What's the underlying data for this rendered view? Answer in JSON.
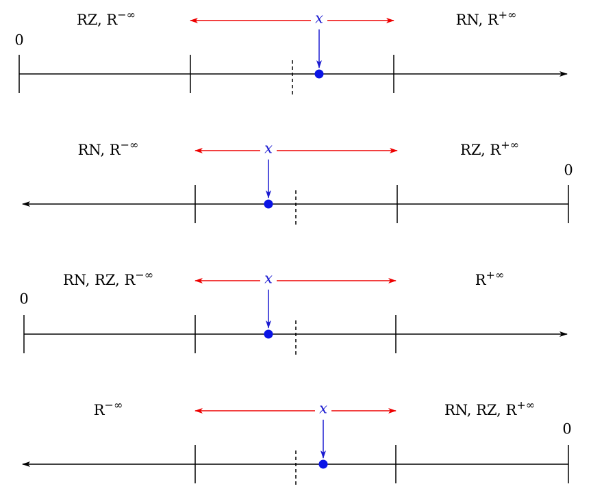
{
  "panels": [
    {
      "zero": "0",
      "x": "x",
      "left": {
        "text": "RZ, R",
        "sup": "−∞"
      },
      "right": {
        "text": "RN, R",
        "sup": "+∞"
      }
    },
    {
      "zero": "0",
      "x": "x",
      "left": {
        "text": "RN, R",
        "sup": "−∞"
      },
      "right": {
        "text": "RZ, R",
        "sup": "+∞"
      }
    },
    {
      "zero": "0",
      "x": "x",
      "left": {
        "text": "RN, RZ, R",
        "sup": "−∞"
      },
      "right": {
        "text": "R",
        "sup": "+∞"
      }
    },
    {
      "zero": "0",
      "x": "x",
      "left": {
        "text": "R",
        "sup": "−∞"
      },
      "right": {
        "text": "RN, RZ, R",
        "sup": "+∞"
      }
    }
  ]
}
